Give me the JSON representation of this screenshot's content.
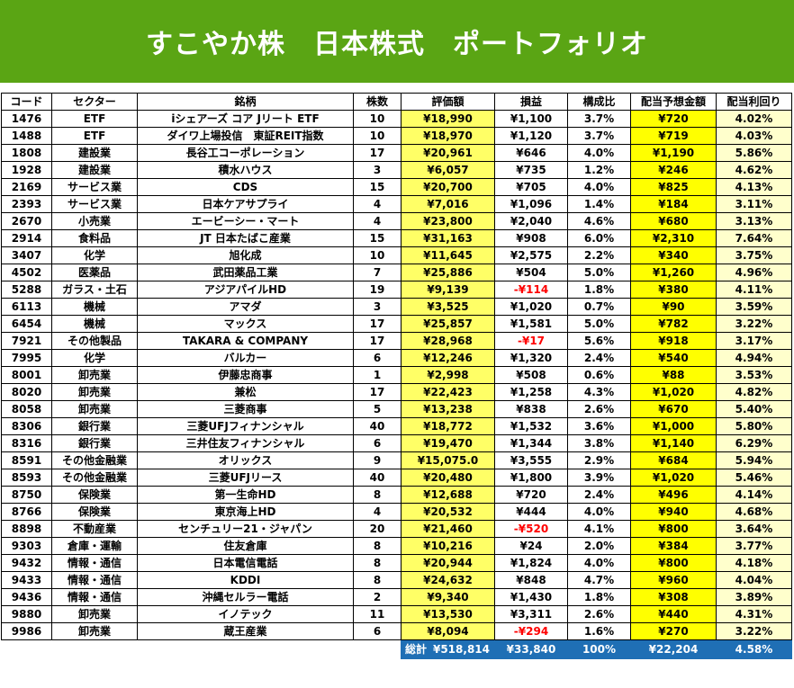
{
  "title": "すこやか株　日本株式　ポートフォリオ",
  "headers": {
    "code": "コード",
    "sector": "セクター",
    "name": "銘柄",
    "shares": "株数",
    "value": "評価額",
    "pnl": "損益",
    "weight": "構成比",
    "dividend": "配当予想金額",
    "yield": "配当利回り"
  },
  "colors": {
    "banner": "#5aa514",
    "value_bg": "#ffff66",
    "dividend_bg": "#ffff00",
    "yield_bg": "#ffffcc",
    "negative": "#ff0000",
    "total_bg": "#1f6fb5"
  },
  "rows": [
    {
      "code": "1476",
      "sector": "ETF",
      "name": "iシェアーズ コア Jリート ETF",
      "shares": "10",
      "value": "¥18,990",
      "pnl": "¥1,100",
      "weight": "3.7%",
      "dividend": "¥720",
      "yield": "4.02%"
    },
    {
      "code": "1488",
      "sector": "ETF",
      "name": "ダイワ上場投信　東証REIT指数",
      "shares": "10",
      "value": "¥18,970",
      "pnl": "¥1,120",
      "weight": "3.7%",
      "dividend": "¥719",
      "yield": "4.03%"
    },
    {
      "code": "1808",
      "sector": "建設業",
      "name": "長谷工コーポレーション",
      "shares": "17",
      "value": "¥20,961",
      "pnl": "¥646",
      "weight": "4.0%",
      "dividend": "¥1,190",
      "yield": "5.86%"
    },
    {
      "code": "1928",
      "sector": "建設業",
      "name": "積水ハウス",
      "shares": "3",
      "value": "¥6,057",
      "pnl": "¥735",
      "weight": "1.2%",
      "dividend": "¥246",
      "yield": "4.62%"
    },
    {
      "code": "2169",
      "sector": "サービス業",
      "name": "CDS",
      "shares": "15",
      "value": "¥20,700",
      "pnl": "¥705",
      "weight": "4.0%",
      "dividend": "¥825",
      "yield": "4.13%"
    },
    {
      "code": "2393",
      "sector": "サービス業",
      "name": "日本ケアサプライ",
      "shares": "4",
      "value": "¥7,016",
      "pnl": "¥1,096",
      "weight": "1.4%",
      "dividend": "¥184",
      "yield": "3.11%"
    },
    {
      "code": "2670",
      "sector": "小売業",
      "name": "エービーシー・マート",
      "shares": "4",
      "value": "¥23,800",
      "pnl": "¥2,040",
      "weight": "4.6%",
      "dividend": "¥680",
      "yield": "3.13%"
    },
    {
      "code": "2914",
      "sector": "食料品",
      "name": "JT 日本たばこ産業",
      "shares": "15",
      "value": "¥31,163",
      "pnl": "¥908",
      "weight": "6.0%",
      "dividend": "¥2,310",
      "yield": "7.64%"
    },
    {
      "code": "3407",
      "sector": "化学",
      "name": "旭化成",
      "shares": "10",
      "value": "¥11,645",
      "pnl": "¥2,575",
      "weight": "2.2%",
      "dividend": "¥340",
      "yield": "3.75%"
    },
    {
      "code": "4502",
      "sector": "医薬品",
      "name": "武田薬品工業",
      "shares": "7",
      "value": "¥25,886",
      "pnl": "¥504",
      "weight": "5.0%",
      "dividend": "¥1,260",
      "yield": "4.96%"
    },
    {
      "code": "5288",
      "sector": "ガラス・土石",
      "name": "アジアパイルHD",
      "shares": "19",
      "value": "¥9,139",
      "pnl": "-¥114",
      "weight": "1.8%",
      "dividend": "¥380",
      "yield": "4.11%",
      "negative": true
    },
    {
      "code": "6113",
      "sector": "機械",
      "name": "アマダ",
      "shares": "3",
      "value": "¥3,525",
      "pnl": "¥1,020",
      "weight": "0.7%",
      "dividend": "¥90",
      "yield": "3.59%"
    },
    {
      "code": "6454",
      "sector": "機械",
      "name": "マックス",
      "shares": "17",
      "value": "¥25,857",
      "pnl": "¥1,581",
      "weight": "5.0%",
      "dividend": "¥782",
      "yield": "3.22%"
    },
    {
      "code": "7921",
      "sector": "その他製品",
      "name": "TAKARA & COMPANY",
      "shares": "17",
      "value": "¥28,968",
      "pnl": "-¥17",
      "weight": "5.6%",
      "dividend": "¥918",
      "yield": "3.17%",
      "negative": true
    },
    {
      "code": "7995",
      "sector": "化学",
      "name": "バルカー",
      "shares": "6",
      "value": "¥12,246",
      "pnl": "¥1,320",
      "weight": "2.4%",
      "dividend": "¥540",
      "yield": "4.94%"
    },
    {
      "code": "8001",
      "sector": "卸売業",
      "name": "伊藤忠商事",
      "shares": "1",
      "value": "¥2,998",
      "pnl": "¥508",
      "weight": "0.6%",
      "dividend": "¥88",
      "yield": "3.53%"
    },
    {
      "code": "8020",
      "sector": "卸売業",
      "name": "兼松",
      "shares": "17",
      "value": "¥22,423",
      "pnl": "¥1,258",
      "weight": "4.3%",
      "dividend": "¥1,020",
      "yield": "4.82%"
    },
    {
      "code": "8058",
      "sector": "卸売業",
      "name": "三菱商事",
      "shares": "5",
      "value": "¥13,238",
      "pnl": "¥838",
      "weight": "2.6%",
      "dividend": "¥670",
      "yield": "5.40%"
    },
    {
      "code": "8306",
      "sector": "銀行業",
      "name": "三菱UFJフィナンシャル",
      "shares": "40",
      "value": "¥18,772",
      "pnl": "¥1,532",
      "weight": "3.6%",
      "dividend": "¥1,000",
      "yield": "5.80%"
    },
    {
      "code": "8316",
      "sector": "銀行業",
      "name": "三井住友フィナンシャル",
      "shares": "6",
      "value": "¥19,470",
      "pnl": "¥1,344",
      "weight": "3.8%",
      "dividend": "¥1,140",
      "yield": "6.29%"
    },
    {
      "code": "8591",
      "sector": "その他金融業",
      "name": "オリックス",
      "shares": "9",
      "value": "¥15,075.0",
      "pnl": "¥3,555",
      "weight": "2.9%",
      "dividend": "¥684",
      "yield": "5.94%"
    },
    {
      "code": "8593",
      "sector": "その他金融業",
      "name": "三菱UFJリース",
      "shares": "40",
      "value": "¥20,480",
      "pnl": "¥1,800",
      "weight": "3.9%",
      "dividend": "¥1,020",
      "yield": "5.46%"
    },
    {
      "code": "8750",
      "sector": "保険業",
      "name": "第一生命HD",
      "shares": "8",
      "value": "¥12,688",
      "pnl": "¥720",
      "weight": "2.4%",
      "dividend": "¥496",
      "yield": "4.14%"
    },
    {
      "code": "8766",
      "sector": "保険業",
      "name": "東京海上HD",
      "shares": "4",
      "value": "¥20,532",
      "pnl": "¥444",
      "weight": "4.0%",
      "dividend": "¥940",
      "yield": "4.68%"
    },
    {
      "code": "8898",
      "sector": "不動産業",
      "name": "センチュリー21・ジャパン",
      "shares": "20",
      "value": "¥21,460",
      "pnl": "-¥520",
      "weight": "4.1%",
      "dividend": "¥800",
      "yield": "3.64%",
      "negative": true
    },
    {
      "code": "9303",
      "sector": "倉庫・運輸",
      "name": "住友倉庫",
      "shares": "8",
      "value": "¥10,216",
      "pnl": "¥24",
      "weight": "2.0%",
      "dividend": "¥384",
      "yield": "3.77%"
    },
    {
      "code": "9432",
      "sector": "情報・通信",
      "name": "日本電信電話",
      "shares": "8",
      "value": "¥20,944",
      "pnl": "¥1,824",
      "weight": "4.0%",
      "dividend": "¥800",
      "yield": "4.18%"
    },
    {
      "code": "9433",
      "sector": "情報・通信",
      "name": "KDDI",
      "shares": "8",
      "value": "¥24,632",
      "pnl": "¥848",
      "weight": "4.7%",
      "dividend": "¥960",
      "yield": "4.04%"
    },
    {
      "code": "9436",
      "sector": "情報・通信",
      "name": "沖縄セルラー電話",
      "shares": "2",
      "value": "¥9,340",
      "pnl": "¥1,430",
      "weight": "1.8%",
      "dividend": "¥308",
      "yield": "3.89%"
    },
    {
      "code": "9880",
      "sector": "卸売業",
      "name": "イノテック",
      "shares": "11",
      "value": "¥13,530",
      "pnl": "¥3,311",
      "weight": "2.6%",
      "dividend": "¥440",
      "yield": "4.31%"
    },
    {
      "code": "9986",
      "sector": "卸売業",
      "name": "蔵王産業",
      "shares": "6",
      "value": "¥8,094",
      "pnl": "-¥294",
      "weight": "1.6%",
      "dividend": "¥270",
      "yield": "3.22%",
      "negative": true
    }
  ],
  "total": {
    "label": "総計",
    "value": "¥518,814",
    "pnl": "¥33,840",
    "weight": "100%",
    "dividend": "¥22,204",
    "yield": "4.58%"
  }
}
